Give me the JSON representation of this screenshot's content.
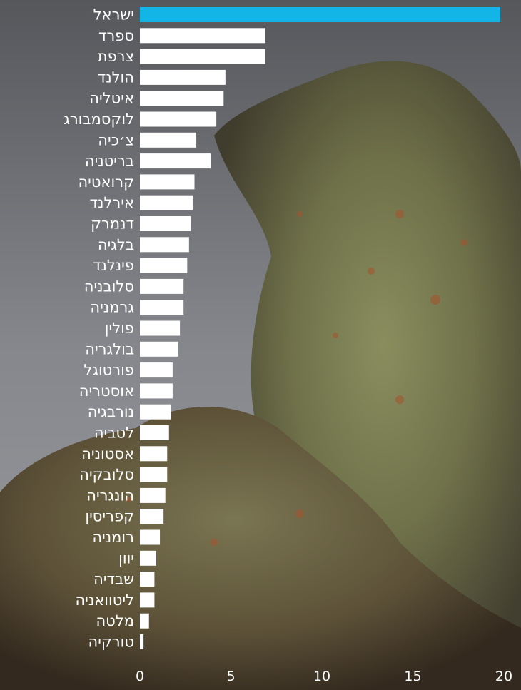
{
  "chart_data": {
    "type": "bar",
    "orientation": "horizontal",
    "categories": [
      "ישראל",
      "ספרד",
      "צרפת",
      "הולנד",
      "איטליה",
      "לוקסמבורג",
      "צ׳כיה",
      "בריטניה",
      "קרואטיה",
      "אירלנד",
      "דנמרק",
      "בלגיה",
      "פינלנד",
      "סלובניה",
      "גרמניה",
      "פולין",
      "בולגריה",
      "פורטוגל",
      "אוסטריה",
      "נורבגיה",
      "לטביה",
      "אסטוניה",
      "סלובקיה",
      "הונגריה",
      "קפריסין",
      "רומניה",
      "יוון",
      "שבדיה",
      "ליטוואניה",
      "מלטה",
      "טורקיה"
    ],
    "values": [
      19.8,
      6.9,
      6.9,
      4.7,
      4.6,
      4.2,
      3.1,
      3.9,
      3.0,
      2.9,
      2.8,
      2.7,
      2.6,
      2.4,
      2.4,
      2.2,
      2.1,
      1.8,
      1.8,
      1.7,
      1.6,
      1.5,
      1.5,
      1.4,
      1.3,
      1.1,
      0.9,
      0.8,
      0.8,
      0.5,
      0.2
    ],
    "highlight_index": 0,
    "xticks": [
      0,
      5,
      10,
      15,
      20
    ],
    "xlim": [
      0,
      20
    ],
    "colors": {
      "bar": "#ffffff",
      "highlight": "#12b5e5",
      "text": "#ffffff",
      "highlight_text": "#12b5e5"
    }
  }
}
